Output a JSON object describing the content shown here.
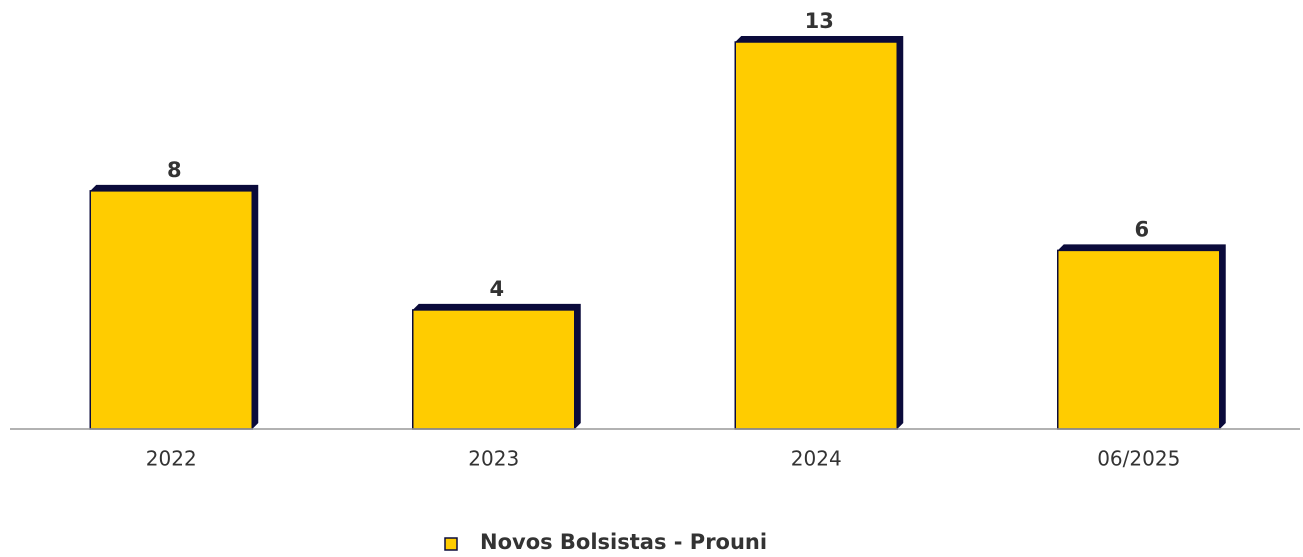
{
  "chart_data": {
    "type": "bar",
    "categories": [
      "2022",
      "2023",
      "2024",
      "06/2025"
    ],
    "series": [
      {
        "name": "Novos Bolsistas - Prouni",
        "color": "#ffcc00",
        "values": [
          8,
          4,
          13,
          6
        ]
      }
    ],
    "shadow_color": "#0b0b3b"
  }
}
